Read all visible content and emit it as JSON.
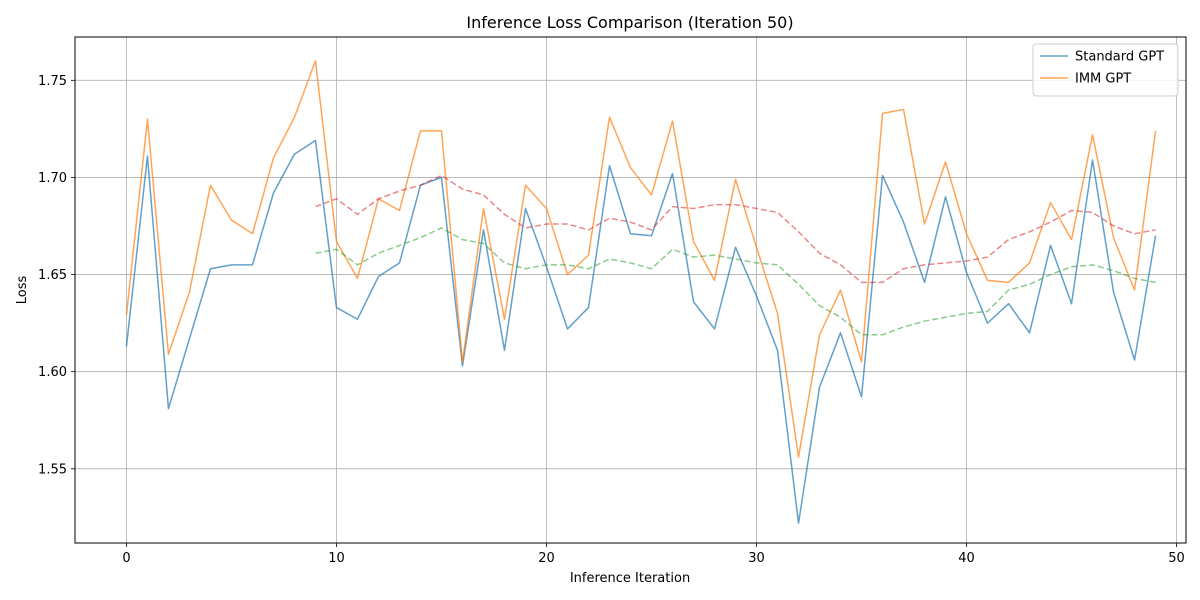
{
  "chart_data": {
    "type": "line",
    "title": "Inference Loss Comparison (Iteration 50)",
    "xlabel": "Inference Iteration",
    "ylabel": "Loss",
    "xlim": [
      -2.45,
      50.45
    ],
    "ylim": [
      1.5118,
      1.7723
    ],
    "xticks": [
      0,
      10,
      20,
      30,
      40,
      50
    ],
    "yticks": [
      1.55,
      1.6,
      1.65,
      1.7,
      1.75
    ],
    "ytick_labels": [
      "1.55",
      "1.60",
      "1.65",
      "1.70",
      "1.75"
    ],
    "grid": true,
    "legend_position": "top-right",
    "x": [
      0,
      1,
      2,
      3,
      4,
      5,
      6,
      7,
      8,
      9,
      10,
      11,
      12,
      13,
      14,
      15,
      16,
      17,
      18,
      19,
      20,
      21,
      22,
      23,
      24,
      25,
      26,
      27,
      28,
      29,
      30,
      31,
      32,
      33,
      34,
      35,
      36,
      37,
      38,
      39,
      40,
      41,
      42,
      43,
      44,
      45,
      46,
      47,
      48,
      49
    ],
    "series": [
      {
        "name": "Standard GPT",
        "color": "#1f77b4",
        "style": "solid",
        "in_legend": true,
        "values": [
          1.613,
          1.711,
          1.581,
          1.617,
          1.653,
          1.655,
          1.655,
          1.692,
          1.712,
          1.719,
          1.633,
          1.627,
          1.649,
          1.656,
          1.696,
          1.7,
          1.603,
          1.673,
          1.611,
          1.684,
          1.654,
          1.622,
          1.633,
          1.706,
          1.671,
          1.67,
          1.702,
          1.636,
          1.622,
          1.664,
          1.639,
          1.611,
          1.522,
          1.592,
          1.62,
          1.587,
          1.701,
          1.677,
          1.646,
          1.69,
          1.651,
          1.625,
          1.635,
          1.62,
          1.665,
          1.635,
          1.709,
          1.641,
          1.606,
          1.67
        ]
      },
      {
        "name": "IMM GPT",
        "color": "#ff7f0e",
        "style": "solid",
        "in_legend": true,
        "values": [
          1.629,
          1.73,
          1.609,
          1.641,
          1.696,
          1.678,
          1.671,
          1.71,
          1.731,
          1.76,
          1.667,
          1.648,
          1.689,
          1.683,
          1.724,
          1.724,
          1.605,
          1.684,
          1.627,
          1.696,
          1.684,
          1.65,
          1.66,
          1.731,
          1.705,
          1.691,
          1.729,
          1.667,
          1.647,
          1.699,
          1.664,
          1.63,
          1.556,
          1.619,
          1.642,
          1.605,
          1.733,
          1.735,
          1.676,
          1.708,
          1.671,
          1.647,
          1.646,
          1.656,
          1.687,
          1.668,
          1.722,
          1.669,
          1.642,
          1.724
        ]
      },
      {
        "name": "",
        "color": "#2ca02c",
        "style": "dashed",
        "in_legend": false,
        "values": [
          null,
          null,
          null,
          null,
          null,
          null,
          null,
          null,
          null,
          1.661,
          1.663,
          1.655,
          1.661,
          1.665,
          1.669,
          1.674,
          1.668,
          1.666,
          1.656,
          1.653,
          1.655,
          1.655,
          1.653,
          1.658,
          1.656,
          1.653,
          1.663,
          1.659,
          1.66,
          1.658,
          1.656,
          1.655,
          1.645,
          1.634,
          1.628,
          1.619,
          1.619,
          1.623,
          1.626,
          1.628,
          1.63,
          1.631,
          1.642,
          1.645,
          1.65,
          1.654,
          1.655,
          1.652,
          1.648,
          1.646
        ]
      },
      {
        "name": "",
        "color": "#d62728",
        "style": "dashed",
        "in_legend": false,
        "values": [
          null,
          null,
          null,
          null,
          null,
          null,
          null,
          null,
          null,
          1.685,
          1.689,
          1.681,
          1.689,
          1.693,
          1.696,
          1.701,
          1.694,
          1.691,
          1.681,
          1.674,
          1.676,
          1.676,
          1.673,
          1.679,
          1.677,
          1.673,
          1.685,
          1.684,
          1.686,
          1.686,
          1.684,
          1.682,
          1.672,
          1.661,
          1.655,
          1.646,
          1.646,
          1.653,
          1.655,
          1.656,
          1.657,
          1.659,
          1.668,
          1.672,
          1.677,
          1.683,
          1.682,
          1.675,
          1.671,
          1.673
        ]
      }
    ]
  }
}
